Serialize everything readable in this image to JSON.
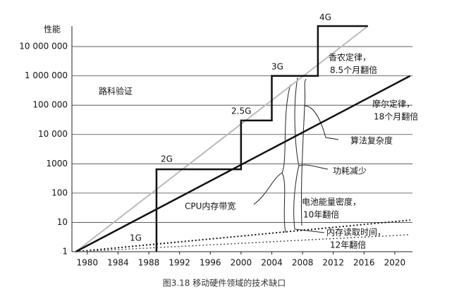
{
  "chart_data": {
    "type": "line",
    "log_y": true,
    "grid": true,
    "y_axis_label": "性能",
    "caption": "图3.18 移动硬件领域的技术缺口",
    "xlim": [
      1978,
      2022.3
    ],
    "xticks": [
      1980,
      1984,
      1988,
      1992,
      1996,
      2000,
      2004,
      2008,
      2012,
      2016,
      2020
    ],
    "ylim": [
      1,
      50000000
    ],
    "yticks": [
      1,
      10,
      100,
      1000,
      {
        "value": 10000,
        "label": "10 000"
      },
      {
        "value": 100000,
        "label": "100 000"
      },
      {
        "value": 1000000,
        "label": "1 000 000"
      },
      {
        "value": 10000000,
        "label": "10 000 000"
      }
    ],
    "series": [
      {
        "color": "#bbbbbb",
        "style": "solid",
        "width": 2,
        "x": [
          1978.5,
          2016.5
        ],
        "values": [
          1,
          50000000
        ]
      },
      {
        "color": "#111111",
        "style": "solid",
        "width": 2.5,
        "x": [
          1978.5,
          2022
        ],
        "values": [
          1,
          1000000
        ]
      },
      {
        "color": "#111111",
        "style": "solid",
        "width": 2.5,
        "x": [
          1989,
          1989,
          2000,
          2000,
          2004,
          2004,
          2010,
          2010,
          2016.5
        ],
        "values": [
          1,
          650,
          650,
          30000,
          30000,
          1000000,
          1000000,
          50000000,
          50000000
        ]
      },
      {
        "color": "#111111",
        "style": "dotted",
        "width": 2,
        "x": [
          1978.5,
          2022
        ],
        "values": [
          1,
          12
        ]
      },
      {
        "color": "#555555",
        "style": "dotted",
        "width": 1.5,
        "x": [
          1978.5,
          2022
        ],
        "values": [
          1,
          3.8
        ]
      }
    ],
    "annotations": [
      {
        "lines": [
          "路科验证"
        ]
      },
      {
        "lines": [
          "香农定律，",
          "8.5个月翻倍"
        ]
      },
      {
        "lines": [
          "摩尔定律，",
          "18个月翻倍"
        ]
      },
      {
        "lines": [
          "算法复杂度"
        ]
      },
      {
        "lines": [
          "功耗减少"
        ]
      },
      {
        "lines": [
          "CPU内存带宽"
        ]
      },
      {
        "lines": [
          "电池能量密度，",
          "10年翻倍"
        ]
      },
      {
        "lines": [
          "内存读取时间，",
          "12年翻倍"
        ]
      },
      {
        "lines": [
          "1G"
        ]
      },
      {
        "lines": [
          "2G"
        ]
      },
      {
        "lines": [
          "2.5G"
        ]
      },
      {
        "lines": [
          "3G"
        ]
      },
      {
        "lines": [
          "4G"
        ]
      }
    ]
  }
}
